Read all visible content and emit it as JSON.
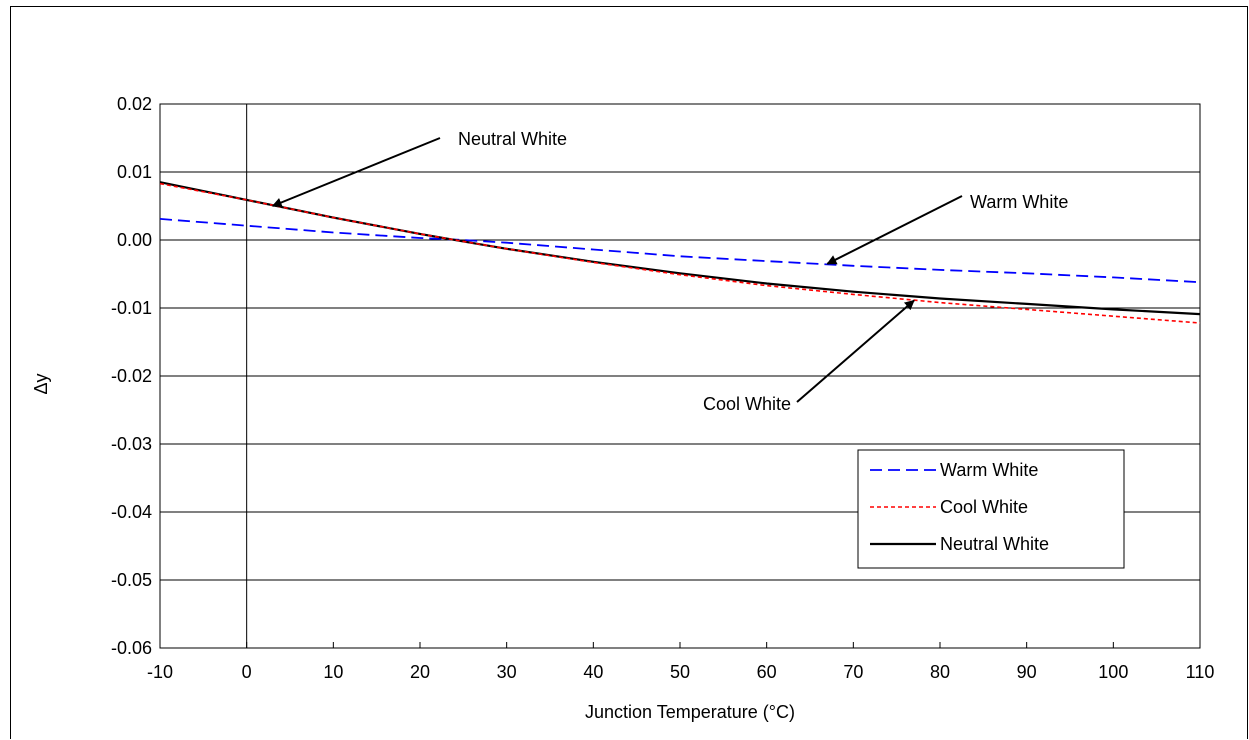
{
  "chart_data": {
    "type": "line",
    "xlabel": "Junction Temperature (°C)",
    "ylabel": "Δy",
    "xlim": [
      -10,
      110
    ],
    "ylim": [
      -0.06,
      0.02
    ],
    "x_ticks": [
      "-10",
      "0",
      "10",
      "20",
      "30",
      "40",
      "50",
      "60",
      "70",
      "80",
      "90",
      "100",
      "110"
    ],
    "y_ticks": [
      "0.02",
      "0.01",
      "0.00",
      "-0.01",
      "-0.02",
      "-0.03",
      "-0.04",
      "-0.05",
      "-0.06"
    ],
    "grid": "horizontal",
    "legend_position": "bottom-right",
    "x": [
      -10,
      0,
      10,
      20,
      25,
      30,
      40,
      50,
      60,
      70,
      80,
      90,
      100,
      110
    ],
    "series": [
      {
        "name": "Warm White",
        "color": "#0000ff",
        "dash": "dashed",
        "values": [
          0.0031,
          0.0021,
          0.0011,
          0.0003,
          0.0,
          -0.0004,
          -0.0014,
          -0.0024,
          -0.0031,
          -0.0038,
          -0.0044,
          -0.0049,
          -0.0055,
          -0.0062
        ]
      },
      {
        "name": "Cool White",
        "color": "#ff0000",
        "dash": "dotted",
        "values": [
          0.0083,
          0.0059,
          0.0033,
          0.0009,
          -0.0002,
          -0.0013,
          -0.0033,
          -0.0051,
          -0.0067,
          -0.008,
          -0.0092,
          -0.0102,
          -0.0112,
          -0.0122
        ]
      },
      {
        "name": "Neutral White",
        "color": "#000000",
        "dash": "solid",
        "values": [
          0.0085,
          0.0059,
          0.0033,
          0.0009,
          -0.0002,
          -0.0013,
          -0.0032,
          -0.0049,
          -0.0064,
          -0.0076,
          -0.0086,
          -0.0094,
          -0.0102,
          -0.0109
        ]
      }
    ],
    "annotations": [
      {
        "text": "Neutral White",
        "x": 3,
        "y": 0.005
      },
      {
        "text": "Warm White",
        "x": 67,
        "y": -0.0035
      },
      {
        "text": "Cool White",
        "x": 77,
        "y": -0.0089
      }
    ]
  }
}
